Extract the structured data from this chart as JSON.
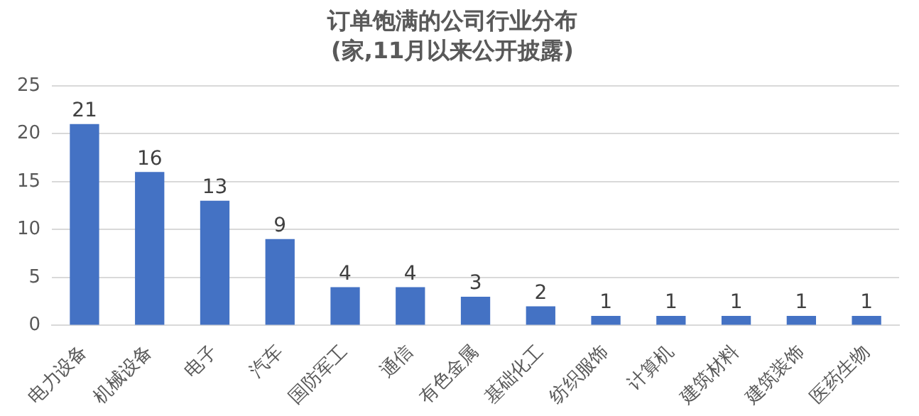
{
  "chart_data": {
    "type": "bar",
    "title": "订单饱满的公司行业分布",
    "subtitle": "(家,11月以来公开披露)",
    "categories": [
      "电力设备",
      "机械设备",
      "电子",
      "汽车",
      "国防军工",
      "通信",
      "有色金属",
      "基础化工",
      "纺织服饰",
      "计算机",
      "建筑材料",
      "建筑装饰",
      "医药生物"
    ],
    "values": [
      21,
      16,
      13,
      9,
      4,
      4,
      3,
      2,
      1,
      1,
      1,
      1,
      1
    ],
    "color": "#4472c4",
    "ylim": [
      0,
      25
    ],
    "yticks": [
      0,
      5,
      10,
      15,
      20,
      25
    ],
    "grid": "y",
    "data_labels": true,
    "legend": false
  }
}
